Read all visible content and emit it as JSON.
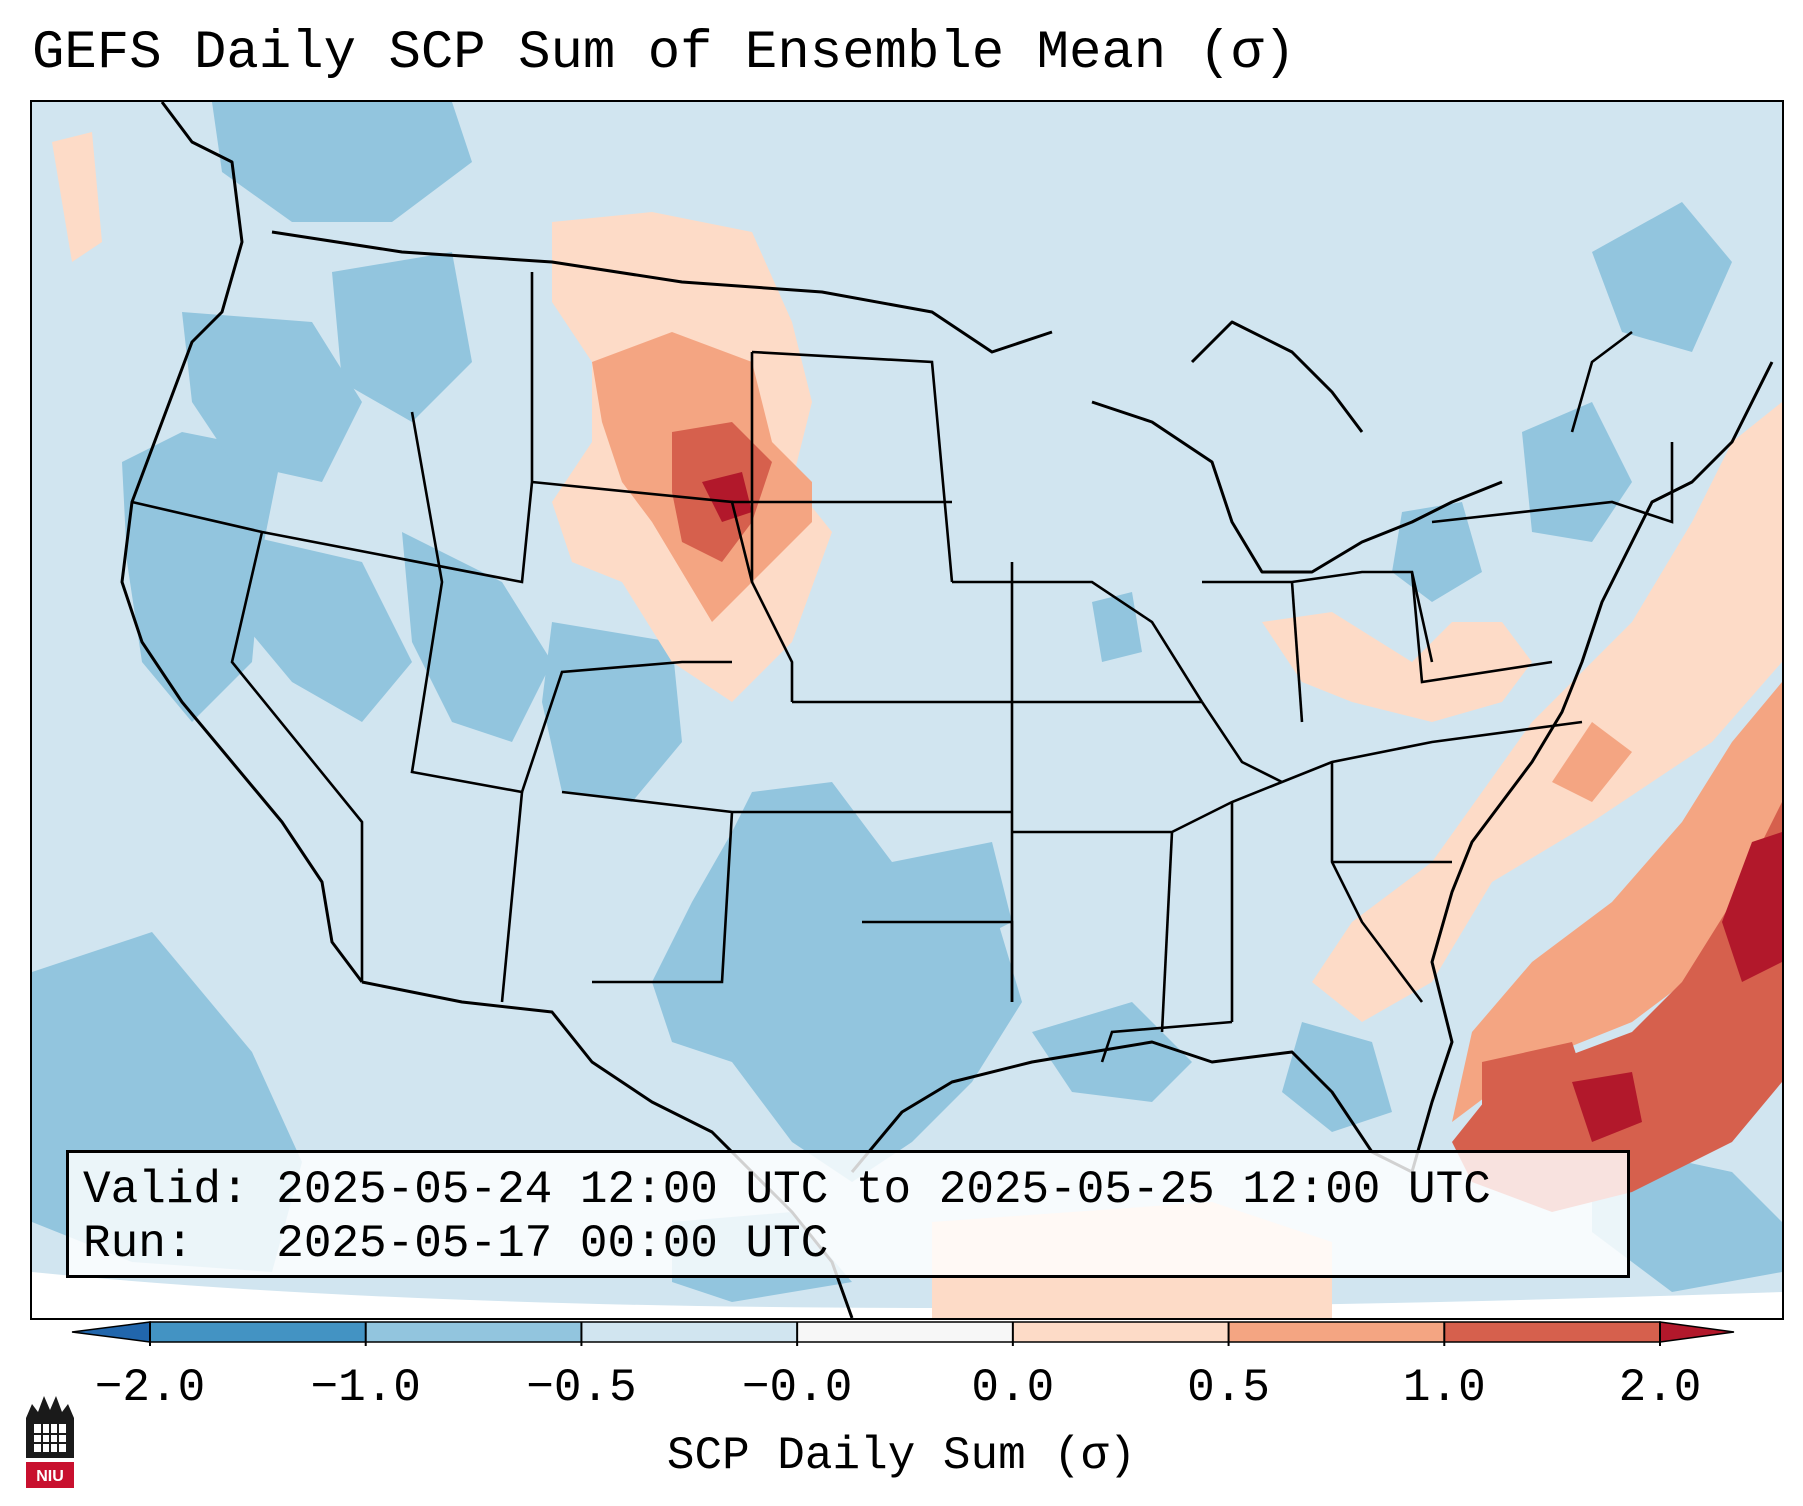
{
  "title": "GEFS Daily SCP Sum of Ensemble Mean (σ)",
  "info": {
    "valid": "Valid: 2025-05-24 12:00 UTC to 2025-05-25 12:00 UTC",
    "run": "Run:   2025-05-17 00:00 UTC"
  },
  "colorbar": {
    "label": "SCP Daily Sum (σ)",
    "ticks": [
      "−2.0",
      "−1.0",
      "−0.5",
      "−0.0",
      "0.0",
      "0.5",
      "1.0",
      "2.0"
    ],
    "colors": [
      "#4393c3",
      "#92c5de",
      "#d1e5f0",
      "#f7f7f7",
      "#fddbc7",
      "#f4a582",
      "#d6604d"
    ],
    "extend_low": "#2166ac",
    "extend_high": "#b2182b"
  },
  "map": {
    "background_color": "#d1e5f0",
    "region": "Contiguous United States",
    "border_color": "#000000"
  },
  "logo": {
    "text": "NIU",
    "color": "#c8102e"
  }
}
